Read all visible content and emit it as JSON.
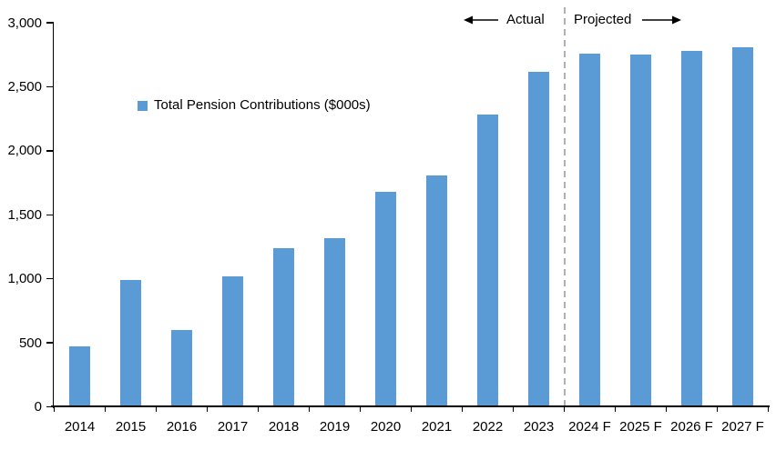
{
  "chart_data": {
    "type": "bar",
    "title": "",
    "categories": [
      "2014",
      "2015",
      "2016",
      "2017",
      "2018",
      "2019",
      "2020",
      "2021",
      "2022",
      "2023",
      "2024 F",
      "2025 F",
      "2026 F",
      "2027 F"
    ],
    "series": [
      {
        "name": "Total Pension Contributions ($000s)",
        "color": "#5B9BD5",
        "values": [
          470,
          990,
          600,
          1020,
          1240,
          1320,
          1680,
          1810,
          2280,
          2620,
          2760,
          2750,
          2780,
          2810
        ]
      }
    ],
    "ylim": [
      0,
      3000
    ],
    "ytick_step": 500,
    "ytick_values": [
      0,
      500,
      1000,
      1500,
      2000,
      2500,
      3000
    ],
    "ytick_labels": [
      "0",
      "500",
      "1,000",
      "1,500",
      "2,000",
      "2,500",
      "3,000"
    ],
    "grid": false,
    "legend": {
      "label": "Total Pension Contributions ($000s)",
      "position": "inside-top-left",
      "marker_color": "#5B9BD5"
    },
    "annotations": {
      "actual_label": "Actual",
      "projected_label": "Projected",
      "divider_after_category": "2023",
      "divider_style": "dashed",
      "divider_color": "#A8A8A8",
      "arrow_color": "#000000"
    },
    "axis_color": "#000000",
    "label_color": "#000000"
  }
}
